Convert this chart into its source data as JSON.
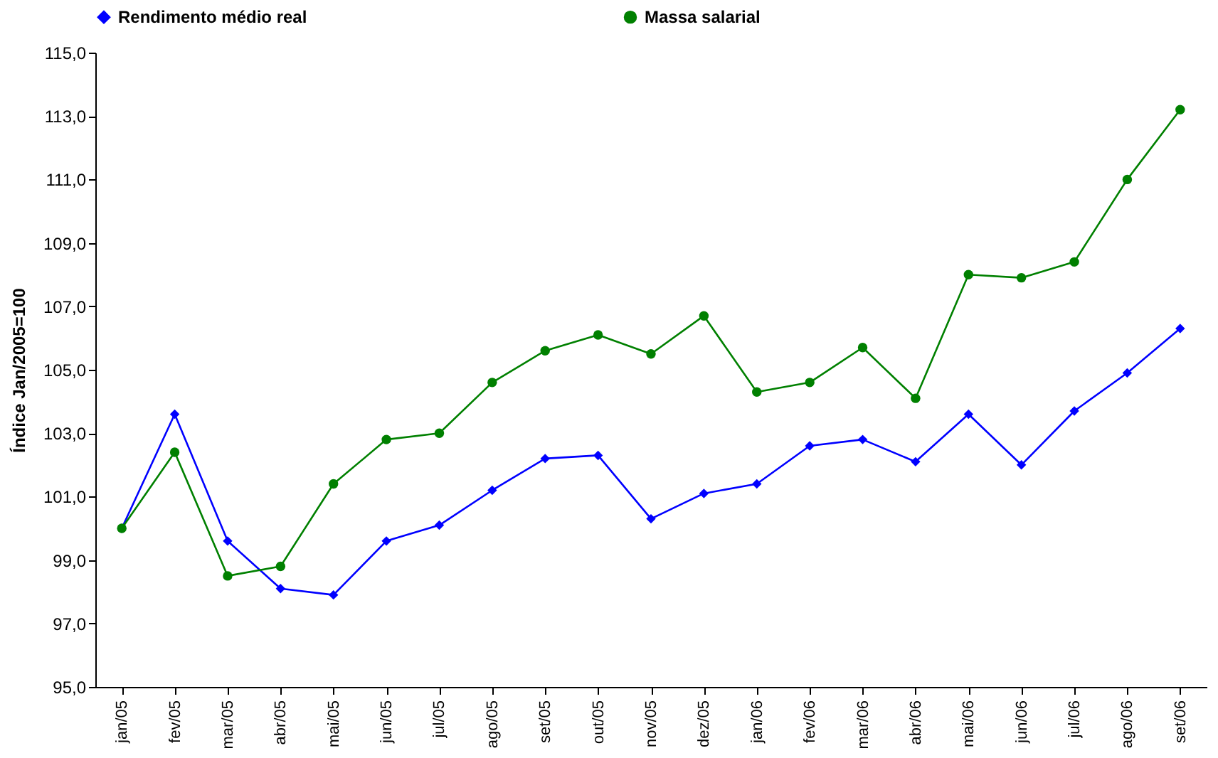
{
  "chart_data": {
    "type": "line",
    "ylabel": "Índice Jan/2005=100",
    "categories": [
      "jan/05",
      "fev/05",
      "mar/05",
      "abr/05",
      "mai/05",
      "jun/05",
      "jul/05",
      "ago/05",
      "set/05",
      "out/05",
      "nov/05",
      "dez/05",
      "jan/06",
      "fev/06",
      "mar/06",
      "abr/06",
      "mai/06",
      "jun/06",
      "jul/06",
      "ago/06",
      "set/06"
    ],
    "series": [
      {
        "name": "Rendimento médio real",
        "color": "#0000ff",
        "marker": "diamond",
        "values": [
          100.0,
          103.6,
          99.6,
          98.1,
          97.9,
          99.6,
          100.1,
          101.2,
          102.2,
          102.3,
          100.3,
          101.1,
          101.4,
          102.6,
          102.8,
          102.1,
          103.6,
          102.0,
          103.7,
          104.9,
          106.3
        ]
      },
      {
        "name": "Massa salarial",
        "color": "#008000",
        "marker": "circle",
        "values": [
          100.0,
          102.4,
          98.5,
          98.8,
          101.4,
          102.8,
          103.0,
          104.6,
          105.6,
          106.1,
          105.5,
          106.7,
          104.3,
          104.6,
          105.7,
          104.1,
          108.0,
          107.9,
          108.4,
          111.0,
          113.2
        ]
      }
    ],
    "ylim": [
      95,
      115
    ],
    "yticks": [
      {
        "value": 95,
        "label": "95,0"
      },
      {
        "value": 97,
        "label": "97,0"
      },
      {
        "value": 99,
        "label": "99,0"
      },
      {
        "value": 101,
        "label": "101,0"
      },
      {
        "value": 103,
        "label": "103,0"
      },
      {
        "value": 105,
        "label": "105,0"
      },
      {
        "value": 107,
        "label": "107,0"
      },
      {
        "value": 109,
        "label": "109,0"
      },
      {
        "value": 111,
        "label": "111,0"
      },
      {
        "value": 113,
        "label": "113,0"
      },
      {
        "value": 115,
        "label": "115,0"
      }
    ],
    "grid": false,
    "legend": "top",
    "line_style": "solid"
  }
}
